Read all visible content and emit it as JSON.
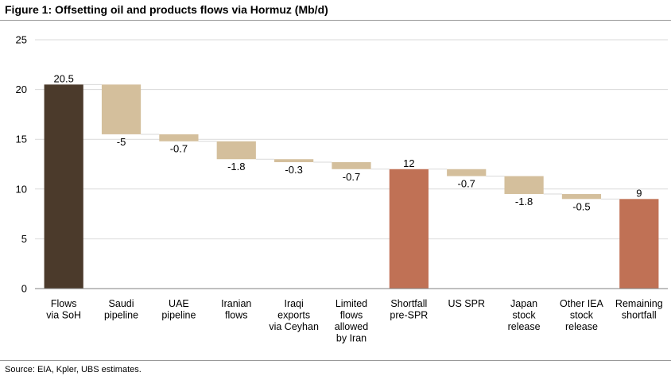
{
  "figure": {
    "title": "Figure 1: Offsetting oil and products flows via Hormuz (Mb/d)",
    "source": "Source: EIA, Kpler, UBS estimates."
  },
  "colors": {
    "total_dark": "#4b3a2b",
    "total_accent": "#c07155",
    "step": "#d4bf9c",
    "gridline": "#d9d9d9",
    "axis": "#808080"
  },
  "chart_data": {
    "type": "bar",
    "subtype": "waterfall",
    "title": "Figure 1: Offsetting oil and products flows via Hormuz (Mb/d)",
    "xlabel": "",
    "ylabel": "",
    "ylim": [
      0,
      25
    ],
    "yticks": [
      0,
      5,
      10,
      15,
      20,
      25
    ],
    "grid": true,
    "legend": "none",
    "categories": [
      [
        "Flows",
        "via SoH"
      ],
      [
        "Saudi",
        "pipeline"
      ],
      [
        "UAE",
        "pipeline"
      ],
      [
        "Iranian",
        "flows"
      ],
      [
        "Iraqi",
        "exports",
        "via Ceyhan"
      ],
      [
        "Limited",
        "flows",
        "allowed",
        "by Iran"
      ],
      [
        "Shortfall",
        "pre-SPR"
      ],
      [
        "US SPR"
      ],
      [
        "Japan",
        "stock",
        "release"
      ],
      [
        "Other IEA",
        "stock",
        "release"
      ],
      [
        "Remaining",
        "shortfall"
      ]
    ],
    "values": [
      20.5,
      -5,
      -0.7,
      -1.8,
      -0.3,
      -0.7,
      12,
      -0.7,
      -1.8,
      -0.5,
      9
    ],
    "data_labels": [
      "20.5",
      "-5",
      "-0.7",
      "-1.8",
      "-0.3",
      "-0.7",
      "12",
      "-0.7",
      "-1.8",
      "-0.5",
      "9"
    ],
    "bar_kind": [
      "total-dark",
      "step",
      "step",
      "step",
      "step",
      "step",
      "total-accent",
      "step",
      "step",
      "step",
      "total-accent"
    ]
  }
}
